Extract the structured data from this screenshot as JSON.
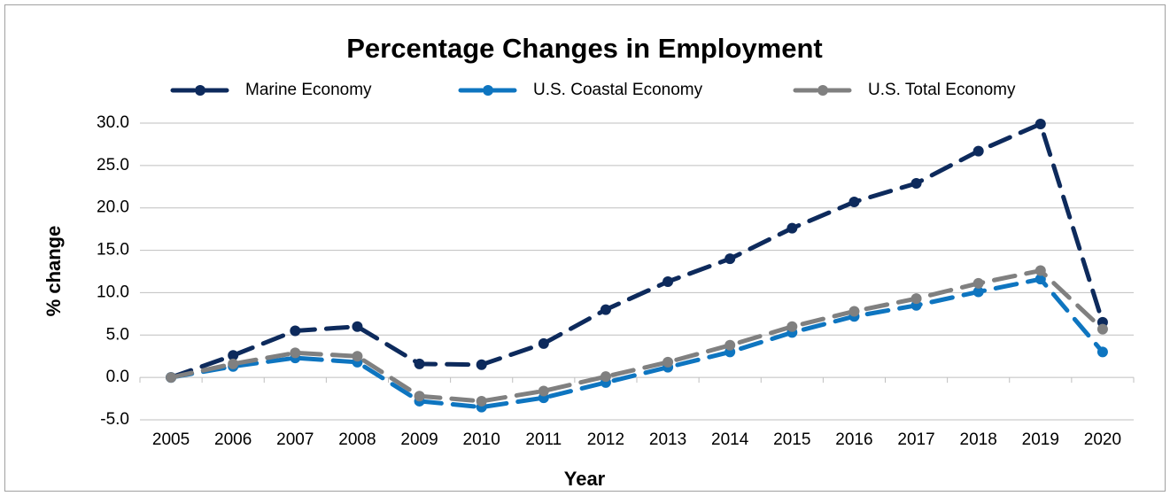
{
  "chart_data": {
    "type": "line",
    "title": "Percentage Changes in Employment",
    "x_label": "Year",
    "y_label": "% change",
    "categories": [
      "2005",
      "2006",
      "2007",
      "2008",
      "2009",
      "2010",
      "2011",
      "2012",
      "2013",
      "2014",
      "2015",
      "2016",
      "2017",
      "2018",
      "2019",
      "2020"
    ],
    "series": [
      {
        "name": "Marine Economy",
        "color": "#0d2a5c",
        "values": [
          0,
          2.6,
          5.5,
          6.0,
          1.6,
          1.5,
          4.0,
          8.0,
          11.3,
          14.0,
          17.6,
          20.7,
          22.9,
          26.7,
          29.9,
          6.5
        ]
      },
      {
        "name": "U.S. Coastal Economy",
        "color": "#0e75c0",
        "values": [
          0,
          1.3,
          2.3,
          1.8,
          -2.8,
          -3.5,
          -2.4,
          -0.6,
          1.2,
          3.0,
          5.3,
          7.2,
          8.5,
          10.1,
          11.6,
          3.0
        ]
      },
      {
        "name": "U.S. Total Economy",
        "color": "#808080",
        "values": [
          0,
          1.6,
          2.9,
          2.5,
          -2.2,
          -2.8,
          -1.6,
          0.1,
          1.8,
          3.8,
          6.0,
          7.8,
          9.3,
          11.1,
          12.6,
          5.7
        ]
      }
    ],
    "ylim": [
      -5,
      30
    ],
    "yticks": [
      {
        "value": -5,
        "label": "-5.0"
      },
      {
        "value": 0,
        "label": "0.0"
      },
      {
        "value": 5,
        "label": "5.0"
      },
      {
        "value": 10,
        "label": "10.0"
      },
      {
        "value": 15,
        "label": "15.0"
      },
      {
        "value": 20,
        "label": "20.0"
      },
      {
        "value": 25,
        "label": "25.0"
      },
      {
        "value": 30,
        "label": "30.0"
      }
    ],
    "grid": true,
    "legend": "top"
  }
}
